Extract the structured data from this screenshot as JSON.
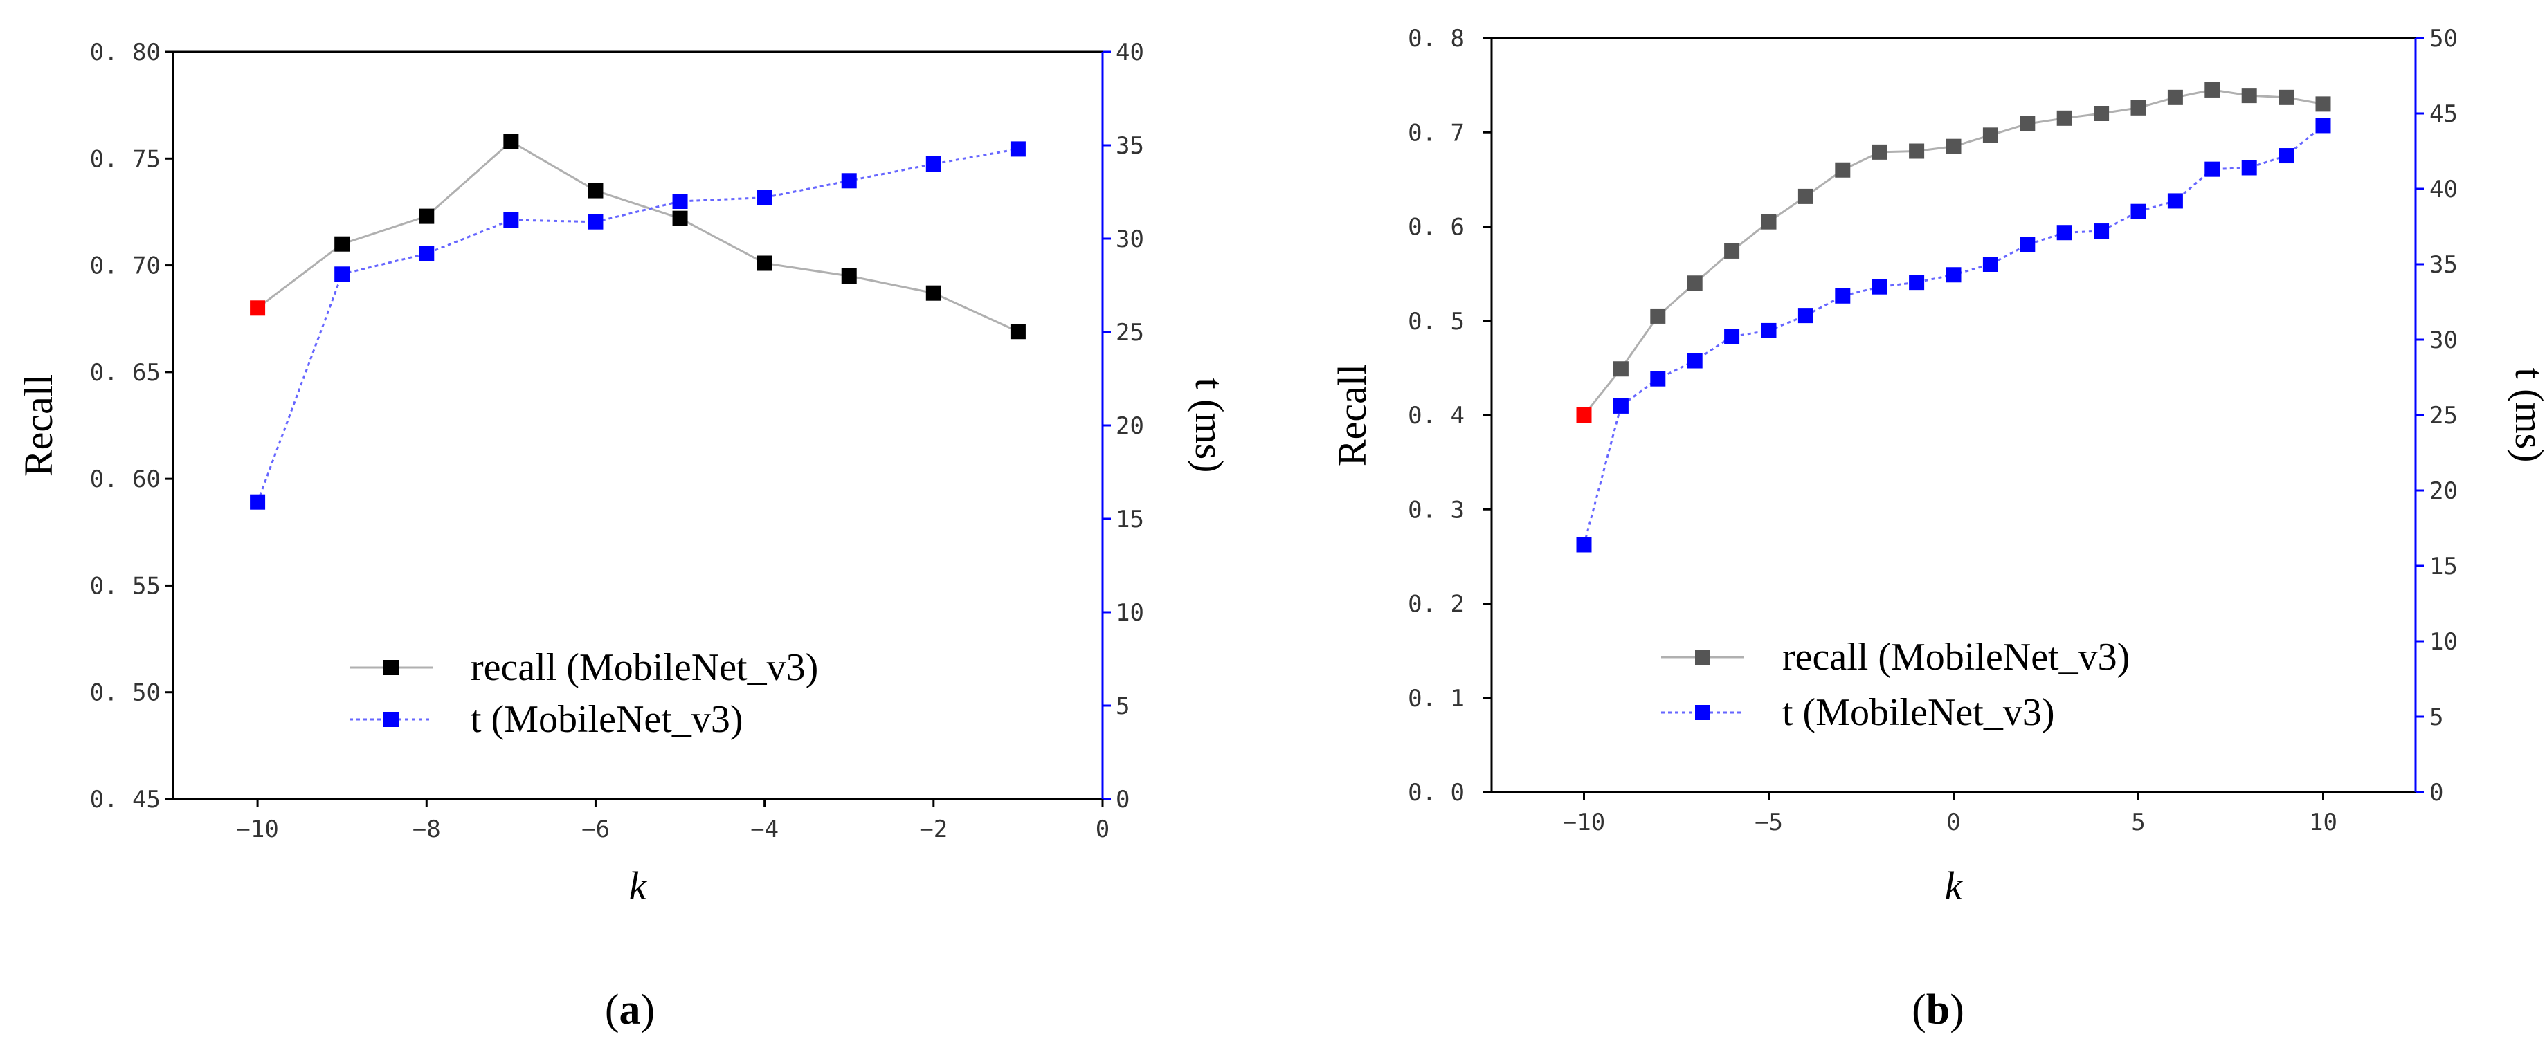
{
  "chart_data": [
    {
      "id": "a",
      "type": "line",
      "caption": {
        "open": "(",
        "letter": "a",
        "close": ")"
      },
      "xlabel": "k",
      "ylabel": "Recall",
      "y2label": "t (ms)",
      "xlim": [
        -11,
        0
      ],
      "ylim": [
        0.45,
        0.8
      ],
      "y2lim": [
        0,
        40
      ],
      "xticks": [
        "−10",
        "−8",
        "−6",
        "−4",
        "−2",
        "0"
      ],
      "xtick_values": [
        -10,
        -8,
        -6,
        -4,
        -2,
        0
      ],
      "yticks": [
        "0. 45",
        "0. 50",
        "0. 55",
        "0. 60",
        "0. 65",
        "0. 70",
        "0. 75",
        "0. 80"
      ],
      "ytick_values": [
        0.45,
        0.5,
        0.55,
        0.6,
        0.65,
        0.7,
        0.75,
        0.8
      ],
      "y2ticks": [
        "0",
        "5",
        "10",
        "15",
        "20",
        "25",
        "30",
        "35",
        "40"
      ],
      "y2tick_values": [
        0,
        5,
        10,
        15,
        20,
        25,
        30,
        35,
        40
      ],
      "x": [
        -10,
        -9,
        -8,
        -7,
        -6,
        -5,
        -4,
        -3,
        -2,
        -1
      ],
      "series": [
        {
          "name": "recall (MobileNet_v3)",
          "axis": "left",
          "values": [
            0.68,
            0.71,
            0.723,
            0.758,
            0.735,
            0.722,
            0.701,
            0.695,
            0.687,
            0.669
          ],
          "color": "#000000",
          "line_color": "#b0b0b0",
          "highlight_index": 0,
          "highlight_color": "#ff0000"
        },
        {
          "name": "t (MobileNet_v3)",
          "axis": "right",
          "values": [
            15.9,
            28.1,
            29.2,
            31.0,
            30.9,
            32.0,
            32.2,
            33.1,
            34.0,
            34.8
          ],
          "color": "#0000ff",
          "line_color": "#6666ff"
        }
      ],
      "legend_position": "bottom-center",
      "right_axis_color": "#0000ff"
    },
    {
      "id": "b",
      "type": "line",
      "caption": {
        "open": "(",
        "letter": "b",
        "close": ")"
      },
      "xlabel": "k",
      "ylabel": "Recall",
      "y2label": "t (ms)",
      "xlim": [
        -12.5,
        12.5
      ],
      "ylim": [
        0.0,
        0.8
      ],
      "y2lim": [
        0,
        50
      ],
      "xticks": [
        "−10",
        "−5",
        "0",
        "5",
        "10"
      ],
      "xtick_values": [
        -10,
        -5,
        0,
        5,
        10
      ],
      "yticks": [
        "0. 0",
        "0. 1",
        "0. 2",
        "0. 3",
        "0. 4",
        "0. 5",
        "0. 6",
        "0. 7",
        "0. 8"
      ],
      "ytick_values": [
        0.0,
        0.1,
        0.2,
        0.3,
        0.4,
        0.5,
        0.6,
        0.7,
        0.8
      ],
      "y2ticks": [
        "0",
        "5",
        "10",
        "15",
        "20",
        "25",
        "30",
        "35",
        "40",
        "45",
        "50"
      ],
      "y2tick_values": [
        0,
        5,
        10,
        15,
        20,
        25,
        30,
        35,
        40,
        45,
        50
      ],
      "x": [
        -10,
        -9,
        -8,
        -7,
        -6,
        -5,
        -4,
        -3,
        -2,
        -1,
        0,
        1,
        2,
        3,
        4,
        5,
        6,
        7,
        8,
        9,
        10
      ],
      "series": [
        {
          "name": "recall (MobileNet_v3)",
          "axis": "left",
          "values": [
            0.4,
            0.449,
            0.505,
            0.54,
            0.574,
            0.605,
            0.632,
            0.66,
            0.679,
            0.68,
            0.685,
            0.697,
            0.709,
            0.715,
            0.72,
            0.726,
            0.737,
            0.745,
            0.739,
            0.737,
            0.73
          ],
          "color": "#555555",
          "line_color": "#b0b0b0",
          "highlight_index": 0,
          "highlight_color": "#ff0000"
        },
        {
          "name": "t (MobileNet_v3)",
          "axis": "right",
          "values": [
            16.4,
            25.6,
            27.4,
            28.6,
            30.2,
            30.6,
            31.6,
            32.9,
            33.5,
            33.8,
            34.3,
            35.0,
            36.3,
            37.1,
            37.2,
            38.5,
            39.2,
            41.3,
            41.4,
            42.2,
            44.2
          ],
          "color": "#0000ff",
          "line_color": "#6666ff"
        }
      ],
      "legend_position": "bottom-center",
      "right_axis_color": "#0000ff"
    }
  ]
}
